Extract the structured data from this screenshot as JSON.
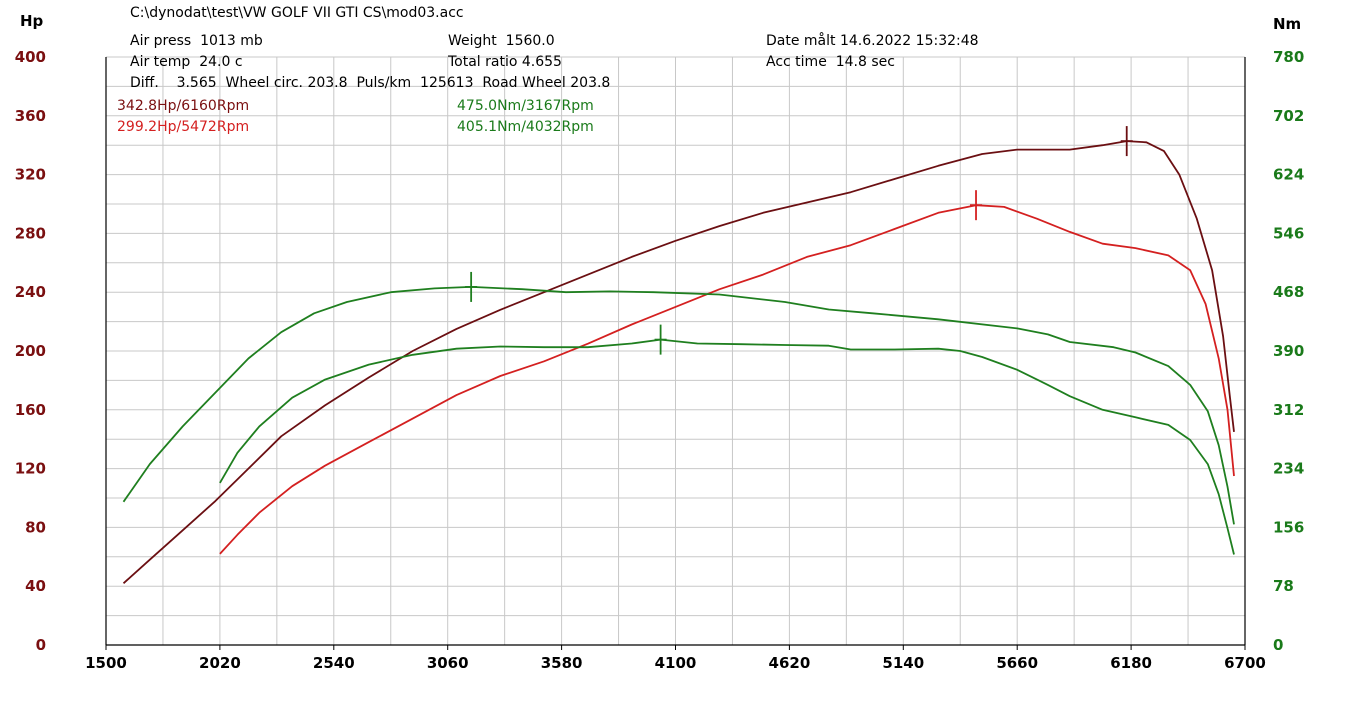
{
  "header": {
    "file": "C:\\dynodat\\test\\VW GOLF VII GTI CS\\mod03.acc",
    "air_press": "Air press  1013 mb",
    "air_temp": "Air temp  24.0 c",
    "diff_line": "Diff.    3.565  Wheel circ. 203.8  Puls/km  125613  Road Wheel 203.8",
    "weight": "Weight  1560.0",
    "total_ratio": "Total ratio 4.655",
    "date": "Date målt 14.6.2022 15:32:48",
    "acc_time": "Acc time  14.8 sec"
  },
  "peaks": {
    "hp1": "342.8Hp/6160Rpm",
    "hp2": "299.2Hp/5472Rpm",
    "nm1": "475.0Nm/3167Rpm",
    "nm2": "405.1Nm/4032Rpm"
  },
  "colors": {
    "hp_run1": "#6b0f12",
    "hp_run2": "#d42020",
    "nm_run1": "#1f7f1f",
    "nm_run2": "#1f7f1f",
    "left_axis_text": "#7a0f10",
    "right_axis_text": "#1a7a1a",
    "grid": "#c8c8c8"
  },
  "chart_data": {
    "type": "line",
    "x_label": "",
    "y_label_left": "Hp",
    "y_label_right": "Nm",
    "xlim": [
      1500,
      6700
    ],
    "ylim_left": [
      0,
      400
    ],
    "ylim_right": [
      0,
      780
    ],
    "x_ticks": [
      "1500",
      "2020",
      "2540",
      "3060",
      "3580",
      "4100",
      "4620",
      "5140",
      "5660",
      "6180",
      "6700"
    ],
    "y_ticks_left": [
      "0",
      "40",
      "80",
      "120",
      "160",
      "200",
      "240",
      "280",
      "320",
      "360",
      "400"
    ],
    "y_ticks_right": [
      "0",
      "78",
      "156",
      "234",
      "312",
      "390",
      "468",
      "546",
      "624",
      "702",
      "780"
    ],
    "series": [
      {
        "key": "hp_run1",
        "axis": "left",
        "unit": "Hp",
        "peak": {
          "x": 6160,
          "y": 342.8
        },
        "points": [
          [
            1580,
            42
          ],
          [
            1700,
            58
          ],
          [
            1850,
            78
          ],
          [
            2000,
            98
          ],
          [
            2150,
            120
          ],
          [
            2300,
            142
          ],
          [
            2500,
            163
          ],
          [
            2700,
            182
          ],
          [
            2900,
            200
          ],
          [
            3100,
            215
          ],
          [
            3300,
            228
          ],
          [
            3500,
            240
          ],
          [
            3700,
            252
          ],
          [
            3900,
            264
          ],
          [
            4100,
            275
          ],
          [
            4300,
            285
          ],
          [
            4500,
            294
          ],
          [
            4700,
            301
          ],
          [
            4900,
            308
          ],
          [
            5100,
            317
          ],
          [
            5300,
            326
          ],
          [
            5500,
            334
          ],
          [
            5660,
            337
          ],
          [
            5900,
            337
          ],
          [
            6050,
            340
          ],
          [
            6160,
            342.8
          ],
          [
            6250,
            342
          ],
          [
            6330,
            336
          ],
          [
            6400,
            320
          ],
          [
            6480,
            290
          ],
          [
            6550,
            255
          ],
          [
            6600,
            210
          ],
          [
            6630,
            170
          ],
          [
            6650,
            145
          ]
        ]
      },
      {
        "key": "hp_run2",
        "axis": "left",
        "unit": "Hp",
        "peak": {
          "x": 5472,
          "y": 299.2
        },
        "points": [
          [
            2020,
            62
          ],
          [
            2100,
            75
          ],
          [
            2200,
            90
          ],
          [
            2350,
            108
          ],
          [
            2500,
            122
          ],
          [
            2700,
            138
          ],
          [
            2900,
            154
          ],
          [
            3100,
            170
          ],
          [
            3300,
            183
          ],
          [
            3500,
            193
          ],
          [
            3700,
            205
          ],
          [
            3900,
            218
          ],
          [
            4100,
            230
          ],
          [
            4300,
            242
          ],
          [
            4500,
            252
          ],
          [
            4700,
            264
          ],
          [
            4900,
            272
          ],
          [
            5100,
            283
          ],
          [
            5300,
            294
          ],
          [
            5472,
            299.2
          ],
          [
            5600,
            298
          ],
          [
            5750,
            290
          ],
          [
            5900,
            281
          ],
          [
            6050,
            273
          ],
          [
            6200,
            270
          ],
          [
            6350,
            265
          ],
          [
            6450,
            255
          ],
          [
            6520,
            232
          ],
          [
            6580,
            195
          ],
          [
            6620,
            160
          ],
          [
            6650,
            115
          ]
        ]
      },
      {
        "key": "nm_run1",
        "axis": "right",
        "unit": "Nm",
        "peak": {
          "x": 3167,
          "y": 475.0
        },
        "points": [
          [
            1580,
            190
          ],
          [
            1700,
            240
          ],
          [
            1850,
            290
          ],
          [
            2000,
            335
          ],
          [
            2150,
            380
          ],
          [
            2300,
            415
          ],
          [
            2450,
            440
          ],
          [
            2600,
            455
          ],
          [
            2800,
            468
          ],
          [
            3000,
            473
          ],
          [
            3167,
            475
          ],
          [
            3400,
            472
          ],
          [
            3600,
            468
          ],
          [
            3800,
            469
          ],
          [
            4000,
            468
          ],
          [
            4300,
            465
          ],
          [
            4600,
            455
          ],
          [
            4800,
            445
          ],
          [
            5000,
            440
          ],
          [
            5300,
            432
          ],
          [
            5660,
            420
          ],
          [
            5800,
            412
          ],
          [
            5900,
            402
          ],
          [
            6100,
            395
          ],
          [
            6200,
            388
          ],
          [
            6350,
            370
          ],
          [
            6450,
            345
          ],
          [
            6530,
            310
          ],
          [
            6580,
            265
          ],
          [
            6620,
            210
          ],
          [
            6650,
            160
          ]
        ]
      },
      {
        "key": "nm_run2",
        "axis": "right",
        "unit": "Nm",
        "peak": {
          "x": 4032,
          "y": 405.1
        },
        "points": [
          [
            2020,
            215
          ],
          [
            2100,
            255
          ],
          [
            2200,
            290
          ],
          [
            2350,
            328
          ],
          [
            2500,
            352
          ],
          [
            2700,
            372
          ],
          [
            2900,
            385
          ],
          [
            3100,
            393
          ],
          [
            3300,
            396
          ],
          [
            3500,
            395
          ],
          [
            3700,
            395
          ],
          [
            3900,
            400
          ],
          [
            4032,
            405.1
          ],
          [
            4200,
            400
          ],
          [
            4400,
            399
          ],
          [
            4600,
            398
          ],
          [
            4800,
            397
          ],
          [
            4900,
            392
          ],
          [
            5100,
            392
          ],
          [
            5300,
            393
          ],
          [
            5400,
            390
          ],
          [
            5500,
            382
          ],
          [
            5660,
            365
          ],
          [
            5800,
            345
          ],
          [
            5900,
            330
          ],
          [
            6050,
            312
          ],
          [
            6200,
            302
          ],
          [
            6350,
            292
          ],
          [
            6450,
            272
          ],
          [
            6530,
            240
          ],
          [
            6580,
            200
          ],
          [
            6620,
            155
          ],
          [
            6650,
            120
          ]
        ]
      }
    ]
  }
}
